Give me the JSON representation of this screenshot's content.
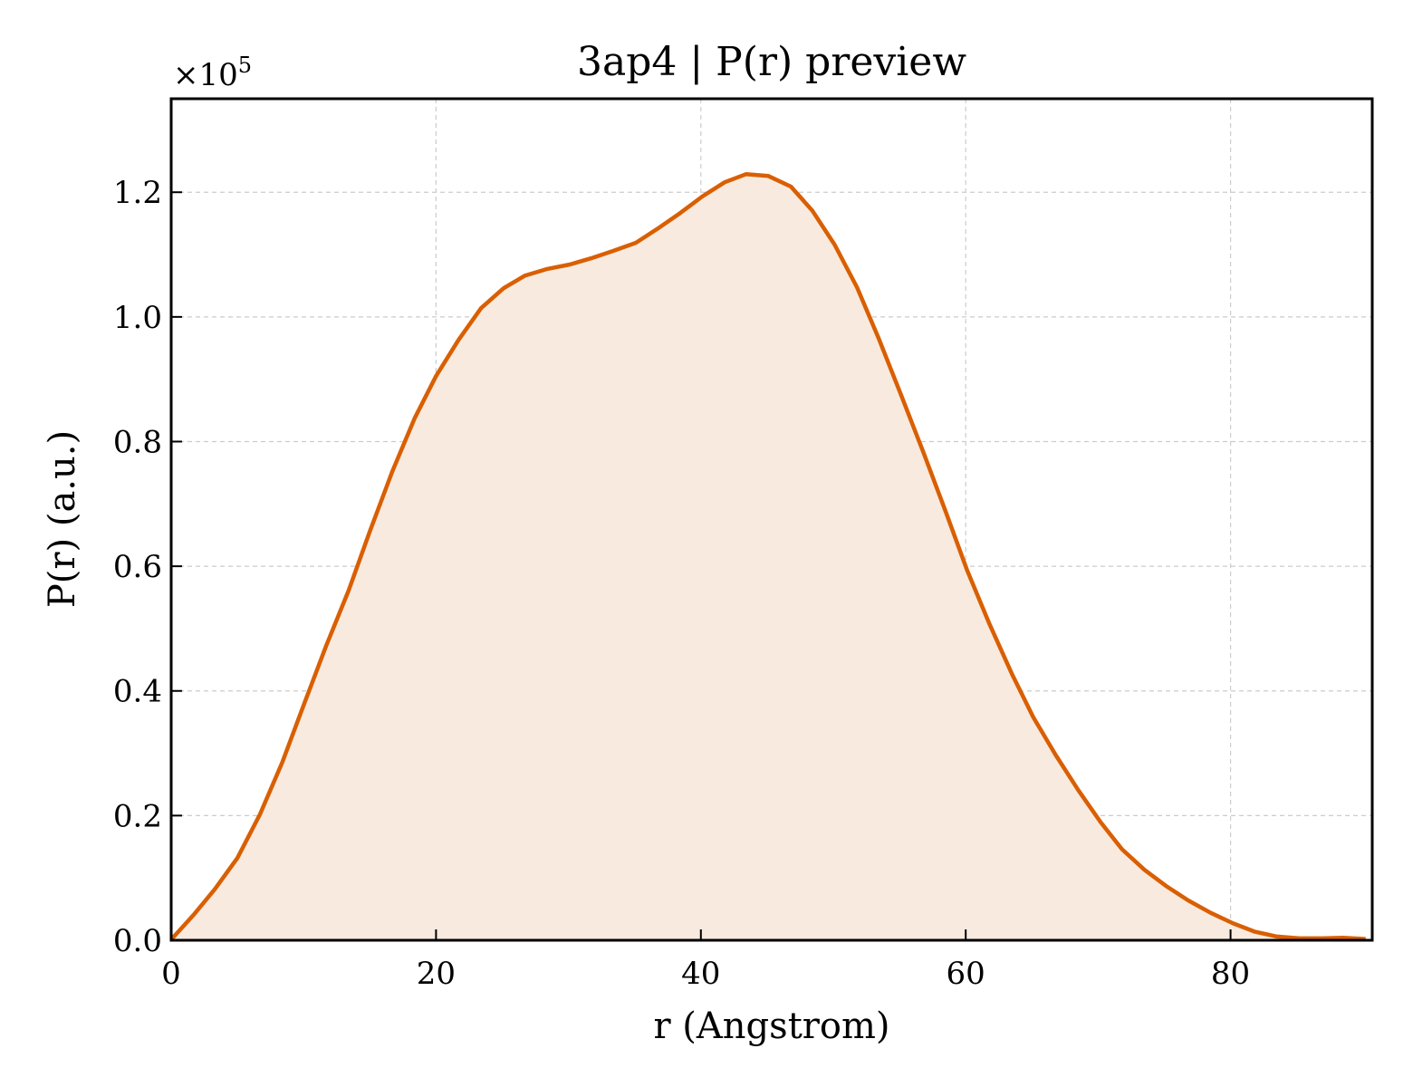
{
  "chart_data": {
    "type": "area",
    "title": "3ap4 | P(r) preview",
    "xlabel": "r (Angstrom)",
    "ylabel": "P(r) (a.u.)",
    "y_offset_text": {
      "base": "×10",
      "exponent": "5"
    },
    "xlim": [
      0,
      90.7
    ],
    "ylim": [
      0,
      1.35
    ],
    "x_ticks": [
      0,
      20,
      40,
      60,
      80
    ],
    "x_tick_labels": [
      "0",
      "20",
      "40",
      "60",
      "80"
    ],
    "y_ticks": [
      0.0,
      0.2,
      0.4,
      0.6,
      0.8,
      1.0,
      1.2
    ],
    "y_tick_labels": [
      "0.0",
      "0.2",
      "0.4",
      "0.6",
      "0.8",
      "1.0",
      "1.2"
    ],
    "grid": true,
    "line_color": "#d95f02",
    "fill_color": "#f8eadf",
    "series": [
      {
        "x": [
          0,
          1.7,
          3.3,
          5.0,
          6.7,
          8.4,
          10.0,
          11.7,
          13.4,
          15.0,
          16.7,
          18.4,
          20.0,
          21.7,
          23.4,
          25.1,
          26.7,
          28.4,
          30.1,
          31.7,
          33.4,
          35.1,
          36.7,
          38.4,
          40.1,
          41.8,
          43.4,
          45.1,
          46.8,
          48.4,
          50.1,
          51.8,
          53.4,
          55.1,
          56.8,
          58.5,
          60.1,
          61.8,
          63.5,
          65.1,
          66.8,
          68.5,
          70.2,
          71.8,
          73.5,
          75.2,
          76.8,
          78.5,
          80.2,
          81.8,
          83.5,
          85.2,
          86.9,
          88.5,
          90.2
        ],
        "y": [
          0.001,
          0.041,
          0.082,
          0.132,
          0.202,
          0.286,
          0.377,
          0.472,
          0.561,
          0.656,
          0.752,
          0.838,
          0.905,
          0.963,
          1.014,
          1.046,
          1.066,
          1.077,
          1.084,
          1.094,
          1.106,
          1.119,
          1.141,
          1.166,
          1.193,
          1.216,
          1.229,
          1.226,
          1.209,
          1.171,
          1.116,
          1.047,
          0.967,
          0.876,
          0.783,
          0.687,
          0.594,
          0.507,
          0.427,
          0.358,
          0.297,
          0.241,
          0.189,
          0.146,
          0.113,
          0.086,
          0.064,
          0.044,
          0.027,
          0.014,
          0.006,
          0.003,
          0.003,
          0.004,
          0.002
        ]
      }
    ]
  }
}
